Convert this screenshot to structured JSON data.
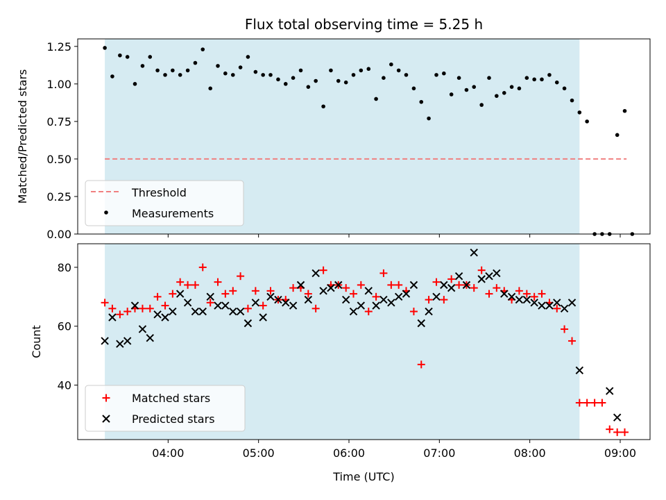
{
  "chart_data": [
    {
      "panel": "top",
      "type": "scatter",
      "title": "Flux total observing time = 5.25 h",
      "ylabel": "Matched/Predicted stars",
      "xlabel": "",
      "x_unit": "UTC hours",
      "xlim": [
        3.0,
        9.33
      ],
      "ylim": [
        0.0,
        1.3
      ],
      "yticks": [
        0.0,
        0.25,
        0.5,
        0.75,
        1.0,
        1.25
      ],
      "ytick_labels": [
        "0.00",
        "0.25",
        "0.50",
        "0.75",
        "1.00",
        "1.25"
      ],
      "observing_span": [
        3.3,
        8.55
      ],
      "span_color": "#add8e6",
      "legend": {
        "placement": "lower-left",
        "entries": [
          "Threshold",
          "Measurements"
        ]
      },
      "threshold": {
        "name": "Threshold",
        "value": 0.5,
        "x_range": [
          3.3,
          9.07
        ],
        "color": "#f08080",
        "style": "dashed"
      },
      "series": [
        {
          "name": "Measurements",
          "marker": "dot",
          "color": "#000000",
          "points": [
            [
              3.3,
              1.24
            ],
            [
              3.383,
              1.05
            ],
            [
              3.467,
              1.19
            ],
            [
              3.55,
              1.18
            ],
            [
              3.633,
              1.0
            ],
            [
              3.717,
              1.12
            ],
            [
              3.8,
              1.18
            ],
            [
              3.883,
              1.09
            ],
            [
              3.967,
              1.06
            ],
            [
              4.05,
              1.09
            ],
            [
              4.133,
              1.06
            ],
            [
              4.217,
              1.09
            ],
            [
              4.3,
              1.14
            ],
            [
              4.383,
              1.23
            ],
            [
              4.467,
              0.97
            ],
            [
              4.55,
              1.12
            ],
            [
              4.633,
              1.07
            ],
            [
              4.717,
              1.06
            ],
            [
              4.8,
              1.11
            ],
            [
              4.883,
              1.18
            ],
            [
              4.967,
              1.08
            ],
            [
              5.05,
              1.06
            ],
            [
              5.133,
              1.06
            ],
            [
              5.217,
              1.03
            ],
            [
              5.3,
              1.0
            ],
            [
              5.383,
              1.04
            ],
            [
              5.467,
              1.09
            ],
            [
              5.55,
              0.98
            ],
            [
              5.633,
              1.02
            ],
            [
              5.717,
              0.85
            ],
            [
              5.8,
              1.09
            ],
            [
              5.883,
              1.02
            ],
            [
              5.967,
              1.01
            ],
            [
              6.05,
              1.06
            ],
            [
              6.133,
              1.09
            ],
            [
              6.217,
              1.1
            ],
            [
              6.3,
              0.9
            ],
            [
              6.383,
              1.04
            ],
            [
              6.467,
              1.13
            ],
            [
              6.55,
              1.09
            ],
            [
              6.633,
              1.06
            ],
            [
              6.717,
              0.97
            ],
            [
              6.8,
              0.88
            ],
            [
              6.883,
              0.77
            ],
            [
              6.967,
              1.06
            ],
            [
              7.05,
              1.07
            ],
            [
              7.133,
              0.93
            ],
            [
              7.217,
              1.04
            ],
            [
              7.3,
              0.96
            ],
            [
              7.383,
              0.98
            ],
            [
              7.467,
              0.86
            ],
            [
              7.55,
              1.04
            ],
            [
              7.633,
              0.92
            ],
            [
              7.717,
              0.94
            ],
            [
              7.8,
              0.98
            ],
            [
              7.883,
              0.97
            ],
            [
              7.967,
              1.04
            ],
            [
              8.05,
              1.03
            ],
            [
              8.133,
              1.03
            ],
            [
              8.217,
              1.06
            ],
            [
              8.3,
              1.01
            ],
            [
              8.383,
              0.97
            ],
            [
              8.467,
              0.89
            ],
            [
              8.55,
              0.81
            ],
            [
              8.633,
              0.75
            ],
            [
              8.717,
              0.0
            ],
            [
              8.8,
              0.0
            ],
            [
              8.883,
              0.0
            ],
            [
              8.967,
              0.66
            ],
            [
              9.05,
              0.82
            ],
            [
              9.133,
              0.0
            ]
          ]
        }
      ]
    },
    {
      "panel": "bottom",
      "type": "scatter",
      "title": "",
      "ylabel": "Count",
      "xlabel": "Time (UTC)",
      "x_unit": "UTC hours",
      "xlim": [
        3.0,
        9.33
      ],
      "ylim": [
        21.5,
        88
      ],
      "yticks": [
        40,
        60,
        80
      ],
      "ytick_labels": [
        "40",
        "60",
        "80"
      ],
      "xticks": [
        4,
        5,
        6,
        7,
        8,
        9
      ],
      "xtick_labels": [
        "04:00",
        "05:00",
        "06:00",
        "07:00",
        "08:00",
        "09:00"
      ],
      "observing_span": [
        3.3,
        8.55
      ],
      "span_color": "#add8e6",
      "legend": {
        "placement": "lower-left",
        "entries": [
          "Matched stars",
          "Predicted stars"
        ]
      },
      "series": [
        {
          "name": "Matched stars",
          "marker": "plus",
          "color": "#ff0000",
          "points": [
            [
              3.3,
              68
            ],
            [
              3.383,
              66
            ],
            [
              3.467,
              64
            ],
            [
              3.55,
              65
            ],
            [
              3.633,
              66
            ],
            [
              3.717,
              66
            ],
            [
              3.8,
              66
            ],
            [
              3.883,
              70
            ],
            [
              3.967,
              67
            ],
            [
              4.05,
              71
            ],
            [
              4.133,
              75
            ],
            [
              4.217,
              74
            ],
            [
              4.3,
              74
            ],
            [
              4.383,
              80
            ],
            [
              4.467,
              68
            ],
            [
              4.55,
              75
            ],
            [
              4.633,
              71
            ],
            [
              4.717,
              72
            ],
            [
              4.8,
              77
            ],
            [
              4.883,
              66
            ],
            [
              4.967,
              72
            ],
            [
              5.05,
              67
            ],
            [
              5.133,
              72
            ],
            [
              5.217,
              69
            ],
            [
              5.3,
              69
            ],
            [
              5.383,
              73
            ],
            [
              5.467,
              73
            ],
            [
              5.55,
              71
            ],
            [
              5.633,
              66
            ],
            [
              5.717,
              79
            ],
            [
              5.8,
              74
            ],
            [
              5.883,
              74
            ],
            [
              5.967,
              73
            ],
            [
              6.05,
              71
            ],
            [
              6.133,
              74
            ],
            [
              6.217,
              65
            ],
            [
              6.3,
              70
            ],
            [
              6.383,
              78
            ],
            [
              6.467,
              74
            ],
            [
              6.55,
              74
            ],
            [
              6.633,
              72
            ],
            [
              6.717,
              65
            ],
            [
              6.8,
              47
            ],
            [
              6.883,
              69
            ],
            [
              6.967,
              75
            ],
            [
              7.05,
              69
            ],
            [
              7.133,
              76
            ],
            [
              7.217,
              74
            ],
            [
              7.3,
              74
            ],
            [
              7.383,
              73
            ],
            [
              7.467,
              79
            ],
            [
              7.55,
              71
            ],
            [
              7.633,
              73
            ],
            [
              7.717,
              72
            ],
            [
              7.8,
              69
            ],
            [
              7.883,
              72
            ],
            [
              7.967,
              71
            ],
            [
              8.05,
              70
            ],
            [
              8.133,
              71
            ],
            [
              8.217,
              68
            ],
            [
              8.3,
              66
            ],
            [
              8.383,
              59
            ],
            [
              8.467,
              55
            ],
            [
              8.55,
              34
            ],
            [
              8.633,
              34
            ],
            [
              8.717,
              34
            ],
            [
              8.8,
              34
            ],
            [
              8.883,
              25
            ],
            [
              8.967,
              24
            ],
            [
              9.05,
              24
            ]
          ]
        },
        {
          "name": "Predicted stars",
          "marker": "cross",
          "color": "#000000",
          "points": [
            [
              3.3,
              55
            ],
            [
              3.383,
              63
            ],
            [
              3.467,
              54
            ],
            [
              3.55,
              55
            ],
            [
              3.633,
              67
            ],
            [
              3.717,
              59
            ],
            [
              3.8,
              56
            ],
            [
              3.883,
              64
            ],
            [
              3.967,
              63
            ],
            [
              4.05,
              65
            ],
            [
              4.133,
              71
            ],
            [
              4.217,
              68
            ],
            [
              4.3,
              65
            ],
            [
              4.383,
              65
            ],
            [
              4.467,
              70
            ],
            [
              4.55,
              67
            ],
            [
              4.633,
              67
            ],
            [
              4.717,
              65
            ],
            [
              4.8,
              65
            ],
            [
              4.883,
              61
            ],
            [
              4.967,
              68
            ],
            [
              5.05,
              63
            ],
            [
              5.133,
              70
            ],
            [
              5.217,
              69
            ],
            [
              5.3,
              68
            ],
            [
              5.383,
              67
            ],
            [
              5.467,
              74
            ],
            [
              5.55,
              69
            ],
            [
              5.633,
              78
            ],
            [
              5.717,
              72
            ],
            [
              5.8,
              73
            ],
            [
              5.883,
              74
            ],
            [
              5.967,
              69
            ],
            [
              6.05,
              65
            ],
            [
              6.133,
              67
            ],
            [
              6.217,
              72
            ],
            [
              6.3,
              67
            ],
            [
              6.383,
              69
            ],
            [
              6.467,
              68
            ],
            [
              6.55,
              70
            ],
            [
              6.633,
              71
            ],
            [
              6.717,
              74
            ],
            [
              6.8,
              61
            ],
            [
              6.883,
              65
            ],
            [
              6.967,
              70
            ],
            [
              7.05,
              74
            ],
            [
              7.133,
              73
            ],
            [
              7.217,
              77
            ],
            [
              7.3,
              74
            ],
            [
              7.383,
              85
            ],
            [
              7.467,
              76
            ],
            [
              7.55,
              77
            ],
            [
              7.633,
              78
            ],
            [
              7.717,
              71
            ],
            [
              7.8,
              70
            ],
            [
              7.883,
              69
            ],
            [
              7.967,
              69
            ],
            [
              8.05,
              68
            ],
            [
              8.133,
              67
            ],
            [
              8.217,
              67
            ],
            [
              8.3,
              68
            ],
            [
              8.383,
              66
            ],
            [
              8.467,
              68
            ],
            [
              8.55,
              45
            ],
            [
              8.883,
              38
            ],
            [
              8.967,
              29
            ]
          ]
        }
      ]
    }
  ]
}
